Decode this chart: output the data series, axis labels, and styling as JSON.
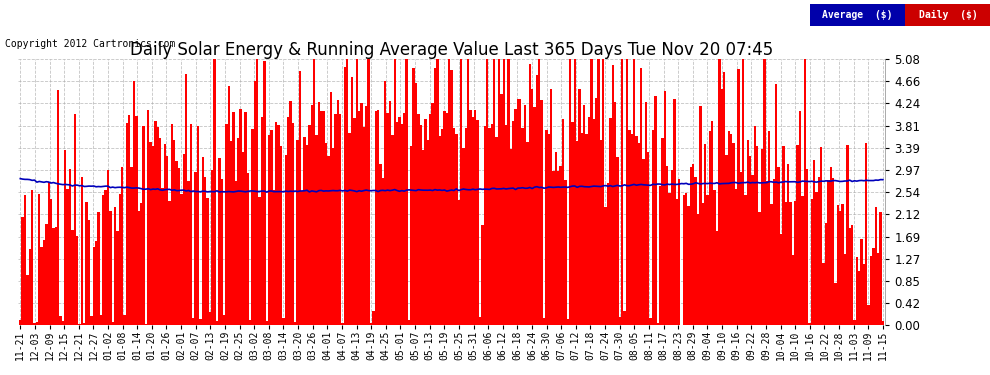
{
  "title": "Daily Solar Energy & Running Average Value Last 365 Days Tue Nov 20 07:45",
  "copyright": "Copyright 2012 Cartronics.com",
  "legend_avg": "Average  ($)",
  "legend_daily": "Daily  ($)",
  "ymin": 0.0,
  "ymax": 5.08,
  "yticks": [
    0.0,
    0.42,
    0.85,
    1.27,
    1.69,
    2.12,
    2.54,
    2.97,
    3.39,
    3.81,
    4.24,
    4.66,
    5.08
  ],
  "bar_color": "#FF0000",
  "avg_line_color": "#0000BB",
  "background_color": "#FFFFFF",
  "grid_color": "#AAAAAA",
  "title_fontsize": 12,
  "xlabel_rotation": 90,
  "x_labels": [
    "11-21",
    "12-03",
    "12-09",
    "12-15",
    "12-21",
    "12-27",
    "01-02",
    "01-08",
    "01-14",
    "01-20",
    "01-26",
    "02-01",
    "02-07",
    "02-13",
    "02-19",
    "02-25",
    "03-02",
    "03-08",
    "03-14",
    "03-20",
    "03-26",
    "04-01",
    "04-07",
    "04-13",
    "04-19",
    "04-25",
    "05-01",
    "05-07",
    "05-13",
    "05-19",
    "05-25",
    "05-31",
    "06-06",
    "06-12",
    "06-18",
    "06-24",
    "06-30",
    "07-06",
    "07-12",
    "07-18",
    "07-24",
    "07-30",
    "08-05",
    "08-11",
    "08-17",
    "08-23",
    "08-29",
    "09-04",
    "09-10",
    "09-16",
    "09-22",
    "09-28",
    "10-04",
    "10-10",
    "10-16",
    "10-22",
    "10-28",
    "11-03",
    "11-09",
    "11-15"
  ]
}
